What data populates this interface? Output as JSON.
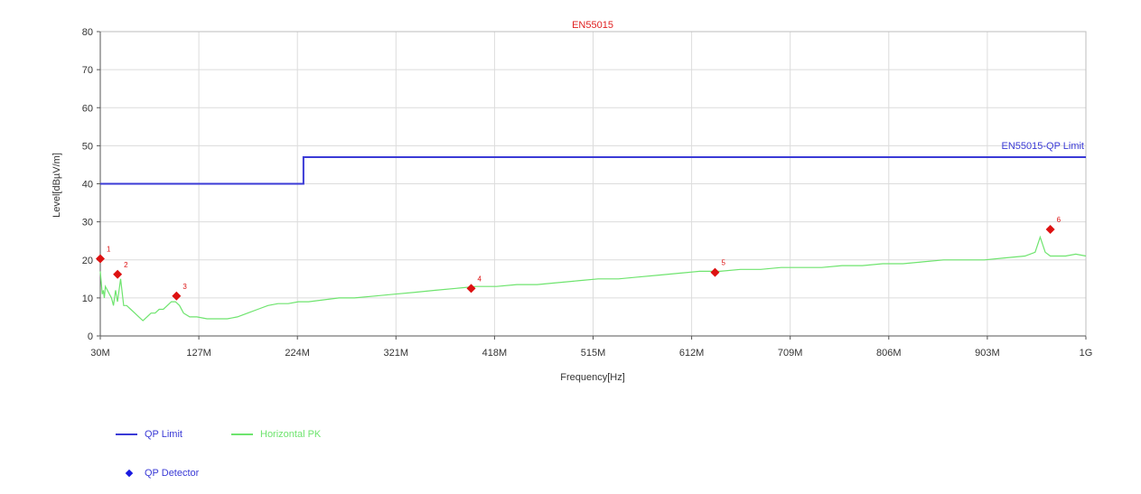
{
  "chart_data": {
    "type": "line",
    "title": "EN55015",
    "xlabel": "Frequency[Hz]",
    "ylabel": "Level[dBµV/m]",
    "xlim": [
      30,
      1000
    ],
    "ylim": [
      0,
      80
    ],
    "x_tick_values": [
      30,
      127,
      224,
      321,
      418,
      515,
      612,
      709,
      806,
      903,
      1000
    ],
    "x_tick_labels": [
      "30M",
      "127M",
      "224M",
      "321M",
      "418M",
      "515M",
      "612M",
      "709M",
      "806M",
      "903M",
      "1G"
    ],
    "y_tick_values": [
      0,
      10,
      20,
      30,
      40,
      50,
      60,
      70,
      80
    ],
    "y_tick_labels": [
      "0",
      "10",
      "20",
      "30",
      "40",
      "50",
      "60",
      "70",
      "80"
    ],
    "grid": true,
    "series": [
      {
        "name": "QP Limit",
        "color": "#3a3ad6",
        "label_on_plot": "EN55015-QP Limit",
        "x": [
          30,
          230,
          230,
          1000
        ],
        "y": [
          40,
          40,
          47,
          47
        ]
      },
      {
        "name": "Horizontal PK",
        "color": "#6ee46e",
        "x": [
          30,
          31,
          32,
          33,
          34,
          35,
          37,
          39,
          41,
          43,
          45,
          47,
          50,
          53,
          56,
          60,
          64,
          68,
          72,
          76,
          80,
          84,
          88,
          92,
          96,
          100,
          104,
          108,
          112,
          118,
          125,
          135,
          145,
          155,
          165,
          175,
          185,
          195,
          205,
          215,
          225,
          235,
          250,
          265,
          280,
          300,
          320,
          340,
          360,
          380,
          400,
          420,
          440,
          460,
          480,
          500,
          520,
          540,
          560,
          580,
          600,
          620,
          640,
          660,
          680,
          700,
          720,
          740,
          760,
          780,
          800,
          820,
          840,
          860,
          880,
          900,
          920,
          940,
          950,
          955,
          960,
          965,
          970,
          980,
          990,
          1000
        ],
        "y": [
          17,
          14,
          11,
          12,
          10,
          13,
          12,
          11,
          10,
          8,
          12,
          9,
          15,
          8,
          8,
          7,
          6,
          5,
          4,
          5,
          6,
          6,
          7,
          7,
          8,
          9,
          9,
          8,
          6,
          5,
          5,
          4.5,
          4.5,
          4.5,
          5,
          6,
          7,
          8,
          8.5,
          8.5,
          9,
          9,
          9.5,
          10,
          10,
          10.5,
          11,
          11.5,
          12,
          12.5,
          13,
          13,
          13.5,
          13.5,
          14,
          14.5,
          15,
          15,
          15.5,
          16,
          16.5,
          17,
          17,
          17.5,
          17.5,
          18,
          18,
          18,
          18.5,
          18.5,
          19,
          19,
          19.5,
          20,
          20,
          20,
          20.5,
          21,
          22,
          26,
          22,
          21,
          21,
          21,
          21.5,
          21
        ]
      },
      {
        "name": "QP Detector",
        "color": "#dd1111",
        "legend_color": "#1a1ae0",
        "marker": "diamond",
        "x": [
          30,
          47,
          105,
          395,
          635,
          965
        ],
        "y": [
          20.3,
          16.2,
          10.5,
          12.5,
          16.7,
          28
        ],
        "point_labels": [
          "1",
          "2",
          "3",
          "4",
          "5",
          "6"
        ]
      }
    ],
    "legend": [
      {
        "label": "QP Limit",
        "type": "line",
        "color": "#3a3ad6",
        "text_color": "#3a3ad6"
      },
      {
        "label": "Horizontal PK",
        "type": "line",
        "color": "#6ee46e",
        "text_color": "#6ee46e"
      },
      {
        "label": "QP Detector",
        "type": "marker",
        "color": "#1a1ae0",
        "text_color": "#3a3ad6"
      }
    ],
    "legend_placement": "bottom-left"
  }
}
